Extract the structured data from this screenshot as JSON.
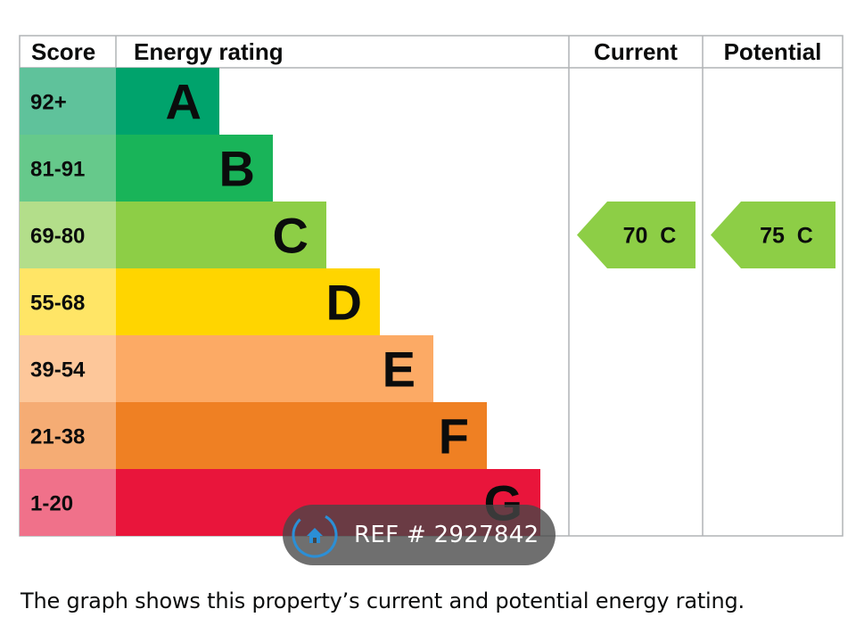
{
  "headers": {
    "score": "Score",
    "energy_rating": "Energy rating",
    "current": "Current",
    "potential": "Potential"
  },
  "chart_data": {
    "type": "bar",
    "bands": [
      {
        "score": "92+",
        "letter": "A",
        "min": 92,
        "max": null,
        "color": "#00a36c",
        "score_bg": "#5fc29b"
      },
      {
        "score": "81-91",
        "letter": "B",
        "min": 81,
        "max": 91,
        "color": "#19b459",
        "score_bg": "#66c98b"
      },
      {
        "score": "69-80",
        "letter": "C",
        "min": 69,
        "max": 80,
        "color": "#8dce46",
        "score_bg": "#b3de8a"
      },
      {
        "score": "55-68",
        "letter": "D",
        "min": 55,
        "max": 68,
        "color": "#ffd500",
        "score_bg": "#ffe566"
      },
      {
        "score": "39-54",
        "letter": "E",
        "min": 39,
        "max": 54,
        "color": "#fcaa65",
        "score_bg": "#fdc79a"
      },
      {
        "score": "21-38",
        "letter": "F",
        "min": 21,
        "max": 38,
        "color": "#ef8023",
        "score_bg": "#f5ac74"
      },
      {
        "score": "1-20",
        "letter": "G",
        "min": 1,
        "max": 20,
        "color": "#e9153b",
        "score_bg": "#f0718a"
      }
    ],
    "current": {
      "value": 70,
      "letter": "C",
      "label": "70  C",
      "color": "#8dce46"
    },
    "potential": {
      "value": 75,
      "letter": "C",
      "label": "75  C",
      "color": "#8dce46"
    }
  },
  "colors": {
    "grid": "#b1b4b6",
    "text": "#0b0c0c"
  },
  "caption": "The graph shows this property’s current and potential energy rating.",
  "watermark": {
    "text": "REF # 2927842",
    "icon": "home-icon"
  }
}
